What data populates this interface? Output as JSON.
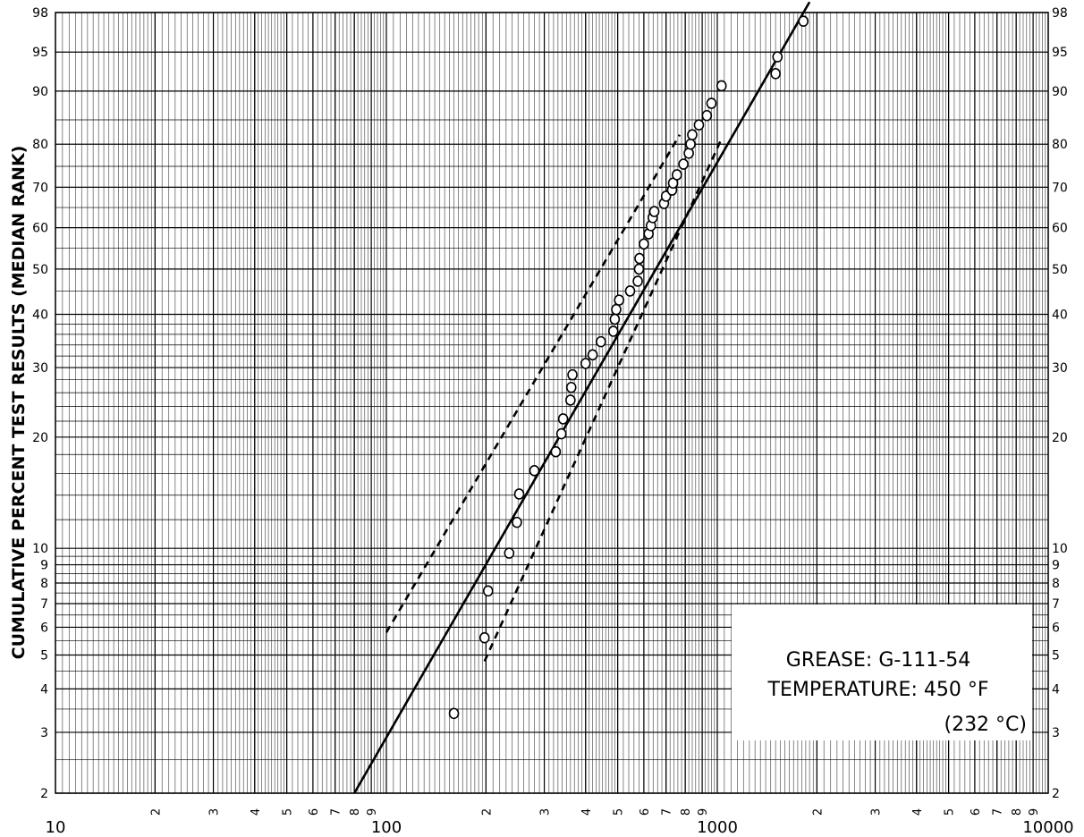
{
  "chart_data": {
    "type": "scatter",
    "title": "",
    "xlabel": "",
    "ylabel": "CUMULATIVE PERCENT TEST RESULTS (MEDIAN RANK)",
    "x_scale": "log",
    "y_scale": "weibull",
    "xlim": [
      10,
      10000
    ],
    "ylim": [
      2,
      98
    ],
    "x_tick_labels": [
      "10",
      "2",
      "3",
      "4",
      "5",
      "6",
      "7",
      "8",
      "9",
      "100",
      "2",
      "3",
      "4",
      "5",
      "6",
      "7",
      "8",
      "9",
      "1000",
      "2",
      "3",
      "4",
      "5",
      "6",
      "7",
      "8",
      "9",
      "10000"
    ],
    "y_tick_labels": [
      "2",
      "3",
      "4",
      "5",
      "6",
      "7",
      "8",
      "9",
      "10",
      "20",
      "30",
      "40",
      "50",
      "60",
      "70",
      "80",
      "90",
      "95",
      "98"
    ],
    "grid": true,
    "series": [
      {
        "kind": "points",
        "x": [
          160,
          198,
          203,
          235,
          248,
          252,
          280,
          325,
          338,
          342,
          360,
          362,
          365,
          400,
          420,
          445,
          485,
          490,
          495,
          505,
          545,
          575,
          580,
          582,
          600,
          620,
          630,
          638,
          645,
          690,
          700,
          730,
          735,
          755,
          790,
          820,
          830,
          840,
          880,
          930,
          960,
          1030,
          1500,
          1520,
          1820
        ],
        "y": [
          3.4,
          5.6,
          7.6,
          9.7,
          11.8,
          14.1,
          16.3,
          18.3,
          20.4,
          22.3,
          24.9,
          26.8,
          28.8,
          30.7,
          32.2,
          34.6,
          36.6,
          39.0,
          41.0,
          43.0,
          45.0,
          47.2,
          50.0,
          52.5,
          56.0,
          58.5,
          60.5,
          62.5,
          64.0,
          66.0,
          67.8,
          69.3,
          71.0,
          73.0,
          75.5,
          78.0,
          80.0,
          82.0,
          84.0,
          85.8,
          88.0,
          90.8,
          92.5,
          94.5,
          97.5
        ]
      },
      {
        "kind": "fit",
        "style": "solid",
        "x": [
          80,
          1900
        ],
        "y": [
          2.0,
          98.5
        ]
      },
      {
        "kind": "confidence_bound",
        "style": "dashed",
        "x": [
          100,
          770
        ],
        "y": [
          5.8,
          82.0
        ]
      },
      {
        "kind": "confidence_bound",
        "style": "dashed",
        "x": [
          198,
          1035
        ],
        "y": [
          4.8,
          81.5
        ]
      }
    ],
    "annotations": [
      "GREASE: G-111-54",
      "TEMPERATURE: 450 °F",
      "(232 °C)"
    ]
  },
  "colors": {
    "background": "#ffffff",
    "ink": "#000000",
    "minor_grid": "#555555"
  }
}
